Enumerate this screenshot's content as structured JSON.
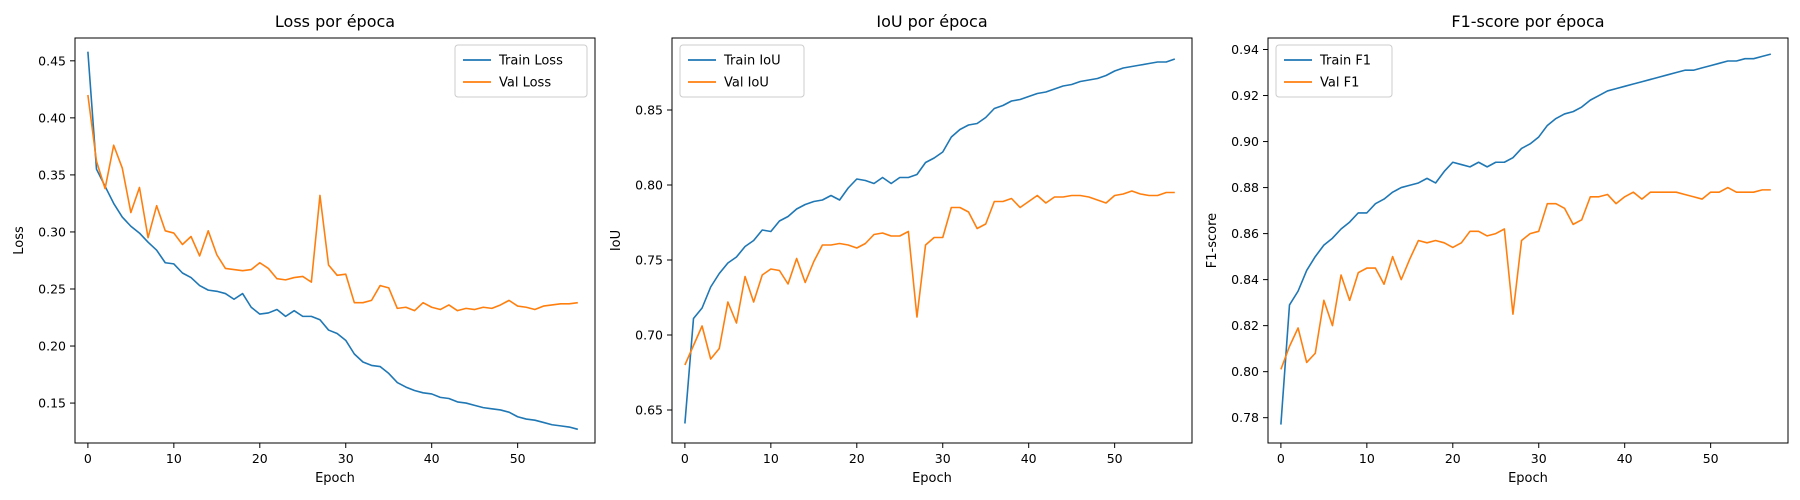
{
  "chart_data": [
    {
      "type": "line",
      "title": "Loss por época",
      "xlabel": "Epoch",
      "ylabel": "Loss",
      "xlim": [
        -1.5,
        59
      ],
      "ylim": [
        0.115,
        0.47
      ],
      "xticks": [
        0,
        10,
        20,
        30,
        40,
        50
      ],
      "yticks": [
        0.15,
        0.2,
        0.25,
        0.3,
        0.35,
        0.4,
        0.45
      ],
      "tick_decimals": 2,
      "legend_position": "top-right",
      "series": [
        {
          "name": "Train Loss",
          "color": "#1f77b4",
          "values": [
            0.458,
            0.355,
            0.34,
            0.325,
            0.313,
            0.305,
            0.299,
            0.291,
            0.284,
            0.273,
            0.272,
            0.264,
            0.26,
            0.253,
            0.249,
            0.248,
            0.246,
            0.241,
            0.246,
            0.234,
            0.228,
            0.229,
            0.232,
            0.226,
            0.231,
            0.226,
            0.226,
            0.223,
            0.214,
            0.211,
            0.205,
            0.193,
            0.186,
            0.183,
            0.182,
            0.176,
            0.168,
            0.164,
            0.161,
            0.159,
            0.158,
            0.155,
            0.154,
            0.151,
            0.15,
            0.148,
            0.146,
            0.145,
            0.144,
            0.142,
            0.138,
            0.136,
            0.135,
            0.133,
            0.131,
            0.13,
            0.129,
            0.127
          ]
        },
        {
          "name": "Val Loss",
          "color": "#ff7f0e",
          "values": [
            0.42,
            0.362,
            0.338,
            0.376,
            0.356,
            0.317,
            0.339,
            0.295,
            0.323,
            0.301,
            0.299,
            0.289,
            0.296,
            0.279,
            0.301,
            0.28,
            0.268,
            0.267,
            0.266,
            0.267,
            0.273,
            0.268,
            0.259,
            0.258,
            0.26,
            0.261,
            0.256,
            0.332,
            0.271,
            0.262,
            0.263,
            0.238,
            0.238,
            0.24,
            0.253,
            0.251,
            0.233,
            0.234,
            0.231,
            0.238,
            0.234,
            0.232,
            0.236,
            0.231,
            0.233,
            0.232,
            0.234,
            0.233,
            0.236,
            0.24,
            0.235,
            0.234,
            0.232,
            0.235,
            0.236,
            0.237,
            0.237,
            0.238
          ]
        }
      ]
    },
    {
      "type": "line",
      "title": "IoU por época",
      "xlabel": "Epoch",
      "ylabel": "IoU",
      "xlim": [
        -1.5,
        59
      ],
      "ylim": [
        0.628,
        0.898
      ],
      "xticks": [
        0,
        10,
        20,
        30,
        40,
        50
      ],
      "yticks": [
        0.65,
        0.7,
        0.75,
        0.8,
        0.85
      ],
      "tick_decimals": 2,
      "legend_position": "top-left",
      "series": [
        {
          "name": "Train IoU",
          "color": "#1f77b4",
          "values": [
            0.641,
            0.711,
            0.718,
            0.732,
            0.741,
            0.748,
            0.752,
            0.759,
            0.763,
            0.77,
            0.769,
            0.776,
            0.779,
            0.784,
            0.787,
            0.789,
            0.79,
            0.793,
            0.79,
            0.798,
            0.804,
            0.803,
            0.801,
            0.805,
            0.801,
            0.805,
            0.805,
            0.807,
            0.815,
            0.818,
            0.822,
            0.832,
            0.837,
            0.84,
            0.841,
            0.845,
            0.851,
            0.853,
            0.856,
            0.857,
            0.859,
            0.861,
            0.862,
            0.864,
            0.866,
            0.867,
            0.869,
            0.87,
            0.871,
            0.873,
            0.876,
            0.878,
            0.879,
            0.88,
            0.881,
            0.882,
            0.882,
            0.884
          ]
        },
        {
          "name": "Val IoU",
          "color": "#ff7f0e",
          "values": [
            0.68,
            0.693,
            0.706,
            0.684,
            0.691,
            0.722,
            0.708,
            0.739,
            0.722,
            0.74,
            0.744,
            0.743,
            0.734,
            0.751,
            0.735,
            0.749,
            0.76,
            0.76,
            0.761,
            0.76,
            0.758,
            0.761,
            0.767,
            0.768,
            0.766,
            0.766,
            0.769,
            0.712,
            0.76,
            0.765,
            0.765,
            0.785,
            0.785,
            0.782,
            0.771,
            0.774,
            0.789,
            0.789,
            0.791,
            0.785,
            0.789,
            0.793,
            0.788,
            0.792,
            0.792,
            0.793,
            0.793,
            0.792,
            0.79,
            0.788,
            0.793,
            0.794,
            0.796,
            0.794,
            0.793,
            0.793,
            0.795,
            0.795
          ]
        }
      ]
    },
    {
      "type": "line",
      "title": "F1-score por época",
      "xlabel": "Epoch",
      "ylabel": "F1-score",
      "xlim": [
        -1.5,
        59
      ],
      "ylim": [
        0.769,
        0.945
      ],
      "xticks": [
        0,
        10,
        20,
        30,
        40,
        50
      ],
      "yticks": [
        0.78,
        0.8,
        0.82,
        0.84,
        0.86,
        0.88,
        0.9,
        0.92,
        0.94
      ],
      "tick_decimals": 2,
      "legend_position": "top-left",
      "series": [
        {
          "name": "Train F1",
          "color": "#1f77b4",
          "values": [
            0.777,
            0.829,
            0.835,
            0.844,
            0.85,
            0.855,
            0.858,
            0.862,
            0.865,
            0.869,
            0.869,
            0.873,
            0.875,
            0.878,
            0.88,
            0.881,
            0.882,
            0.884,
            0.882,
            0.887,
            0.891,
            0.89,
            0.889,
            0.891,
            0.889,
            0.891,
            0.891,
            0.893,
            0.897,
            0.899,
            0.902,
            0.907,
            0.91,
            0.912,
            0.913,
            0.915,
            0.918,
            0.92,
            0.922,
            0.923,
            0.924,
            0.925,
            0.926,
            0.927,
            0.928,
            0.929,
            0.93,
            0.931,
            0.931,
            0.932,
            0.933,
            0.934,
            0.935,
            0.935,
            0.936,
            0.936,
            0.937,
            0.938
          ]
        },
        {
          "name": "Val F1",
          "color": "#ff7f0e",
          "values": [
            0.801,
            0.811,
            0.819,
            0.804,
            0.808,
            0.831,
            0.82,
            0.842,
            0.831,
            0.843,
            0.845,
            0.845,
            0.838,
            0.85,
            0.84,
            0.849,
            0.857,
            0.856,
            0.857,
            0.856,
            0.854,
            0.856,
            0.861,
            0.861,
            0.859,
            0.86,
            0.862,
            0.825,
            0.857,
            0.86,
            0.861,
            0.873,
            0.873,
            0.871,
            0.864,
            0.866,
            0.876,
            0.876,
            0.877,
            0.873,
            0.876,
            0.878,
            0.875,
            0.878,
            0.878,
            0.878,
            0.878,
            0.877,
            0.876,
            0.875,
            0.878,
            0.878,
            0.88,
            0.878,
            0.878,
            0.878,
            0.879,
            0.879
          ]
        }
      ]
    }
  ]
}
